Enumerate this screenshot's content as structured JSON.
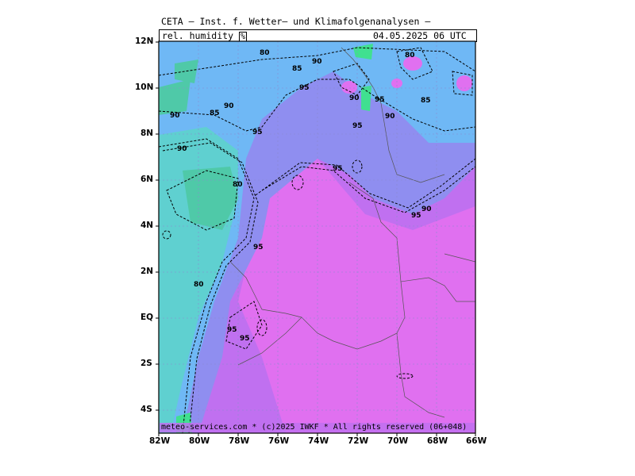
{
  "header": {
    "title": "CETA — Inst. f. Wetter— und Klimafolgenanalysen —",
    "field": "rel. humidity",
    "unit": "%",
    "datetime": "04.05.2025 06 UTC"
  },
  "footer": "meteo-services.com * (c)2025 IWKF * All rights reserved (06+048)",
  "axes": {
    "lat_labels": [
      "12N",
      "10N",
      "8N",
      "6N",
      "4N",
      "2N",
      "EQ",
      "2S",
      "4S"
    ],
    "lon_labels": [
      "82W",
      "80W",
      "78W",
      "76W",
      "74W",
      "72W",
      "70W",
      "68W",
      "66W"
    ]
  },
  "contours": [
    "80",
    "85",
    "90",
    "95",
    "80",
    "85",
    "90",
    "95",
    "90",
    "95",
    "85",
    "90",
    "95",
    "90",
    "80",
    "95",
    "90",
    "95",
    "90",
    "80",
    "95",
    "95",
    "95"
  ],
  "colors": {
    "humidity_75": "#4fc9a8",
    "humidity_80": "#5fd0d0",
    "humidity_85": "#6fb8f5",
    "humidity_90": "#8f8ef0",
    "humidity_95": "#c070f0",
    "humidity_100": "#e070f0",
    "high_green": "#40e090"
  }
}
